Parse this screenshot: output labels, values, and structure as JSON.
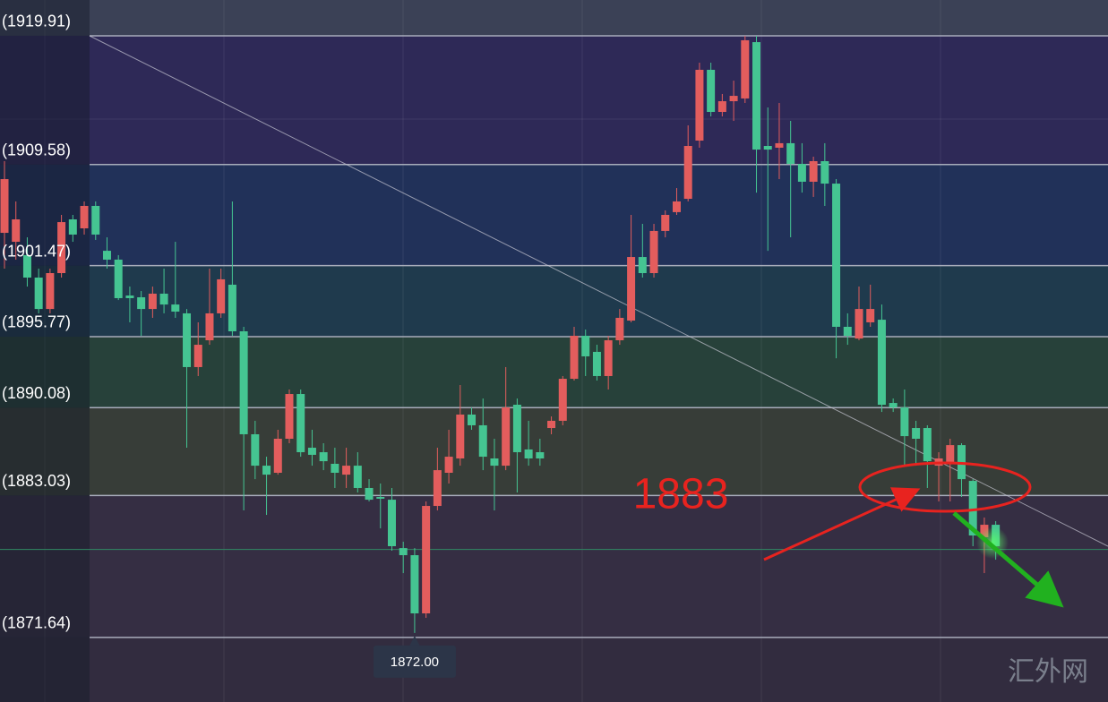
{
  "chart_data": {
    "type": "candlestick",
    "open": [
      1904.1,
      1903.38,
      1902.31,
      1900.51,
      1897.99,
      1900.87,
      1905.18,
      1904.46,
      1906.26,
      1902.66,
      1901.95,
      1899.07,
      1898.93,
      1897.99,
      1899.22,
      1898.35,
      1897.64,
      1893.33,
      1895.48,
      1897.64,
      1899.94,
      1896.2,
      1887.94,
      1885.42,
      1884.85,
      1887.58,
      1891.17,
      1886.86,
      1886.5,
      1885.57,
      1884.7,
      1885.42,
      1883.63,
      1882.91,
      1882.69,
      1878.81,
      1878.24,
      1873.57,
      1882.19,
      1884.85,
      1886.0,
      1889.52,
      1888.66,
      1886.0,
      1885.42,
      1890.31,
      1886.72,
      1886.5,
      1888.44,
      1889.02,
      1892.39,
      1895.84,
      1894.55,
      1892.61,
      1895.48,
      1897.06,
      1902.16,
      1900.87,
      1904.25,
      1905.76,
      1906.83,
      1911.5,
      1917.18,
      1913.8,
      1914.66,
      1914.88,
      1919.4,
      1911.07,
      1910.93,
      1911.29,
      1909.63,
      1908.2,
      1909.85,
      1908.05,
      1896.56,
      1895.62,
      1896.92,
      1897.13,
      1890.45,
      1890.09,
      1888.44,
      1888.44,
      1885.42,
      1885.64,
      1887.07,
      1884.2,
      1879.68,
      1880.68
    ],
    "high": [
      1909.85,
      1906.62,
      1903.74,
      1901.23,
      1901.23,
      1905.54,
      1905.54,
      1906.62,
      1906.62,
      1903.74,
      1902.31,
      1899.79,
      1899.43,
      1899.79,
      1901.23,
      1903.38,
      1897.99,
      1896.92,
      1901.23,
      1901.23,
      1906.62,
      1896.56,
      1889.02,
      1886.14,
      1888.3,
      1891.53,
      1891.53,
      1888.3,
      1887.22,
      1886.86,
      1886.86,
      1886.5,
      1884.34,
      1883.99,
      1883.63,
      1879.32,
      1878.81,
      1882.55,
      1886.86,
      1888.3,
      1891.89,
      1890.09,
      1890.81,
      1887.58,
      1893.33,
      1890.81,
      1889.02,
      1887.58,
      1889.37,
      1892.61,
      1896.56,
      1896.34,
      1895.12,
      1895.84,
      1897.99,
      1905.54,
      1904.82,
      1904.82,
      1905.9,
      1907.69,
      1912.72,
      1917.75,
      1917.75,
      1915.24,
      1916.31,
      1919.91,
      1919.91,
      1914.16,
      1914.52,
      1913.08,
      1911.29,
      1910.21,
      1911.29,
      1908.41,
      1897.64,
      1899.79,
      1899.94,
      1898.35,
      1890.81,
      1891.53,
      1889.02,
      1888.66,
      1886.5,
      1887.58,
      1887.22,
      1884.34,
      1881.26,
      1880.97
    ],
    "low": [
      1901.23,
      1901.95,
      1899.79,
      1897.64,
      1897.64,
      1900.51,
      1903.38,
      1903.96,
      1903.53,
      1901.23,
      1898.71,
      1896.92,
      1895.84,
      1897.28,
      1897.64,
      1897.28,
      1886.86,
      1892.61,
      1895.12,
      1897.28,
      1895.84,
      1881.83,
      1884.34,
      1881.47,
      1884.7,
      1887.22,
      1886.14,
      1885.42,
      1885.06,
      1883.63,
      1883.63,
      1883.27,
      1882.55,
      1880.39,
      1878.6,
      1876.8,
      1872.0,
      1873.21,
      1881.83,
      1883.99,
      1885.42,
      1888.3,
      1885.06,
      1881.83,
      1885.06,
      1883.27,
      1885.42,
      1885.42,
      1887.94,
      1888.66,
      1892.25,
      1892.61,
      1892.25,
      1891.53,
      1895.12,
      1896.92,
      1900.51,
      1900.51,
      1903.74,
      1905.54,
      1906.62,
      1910.93,
      1913.44,
      1913.44,
      1913.08,
      1914.52,
      1907.33,
      1902.66,
      1908.41,
      1903.74,
      1907.33,
      1906.98,
      1906.26,
      1894.04,
      1895.12,
      1895.48,
      1896.56,
      1889.73,
      1889.73,
      1885.42,
      1885.42,
      1883.63,
      1882.55,
      1882.55,
      1882.91,
      1878.96,
      1876.8,
      1877.88
    ],
    "close": [
      1908.41,
      1905.18,
      1900.51,
      1897.99,
      1900.87,
      1904.96,
      1903.96,
      1906.26,
      1903.96,
      1901.95,
      1898.86,
      1898.86,
      1897.99,
      1899.22,
      1898.35,
      1897.78,
      1893.33,
      1895.12,
      1897.64,
      1900.37,
      1896.2,
      1887.94,
      1885.42,
      1884.7,
      1887.58,
      1891.17,
      1886.5,
      1886.29,
      1885.78,
      1884.85,
      1885.42,
      1883.63,
      1882.69,
      1882.77,
      1878.96,
      1878.24,
      1873.57,
      1882.19,
      1885.06,
      1886.14,
      1889.52,
      1888.66,
      1886.14,
      1885.42,
      1890.09,
      1886.5,
      1886.0,
      1886.0,
      1889.02,
      1892.39,
      1895.84,
      1894.19,
      1892.61,
      1895.48,
      1897.28,
      1902.16,
      1900.87,
      1904.25,
      1905.54,
      1906.62,
      1911.07,
      1917.18,
      1913.8,
      1914.66,
      1915.09,
      1919.55,
      1910.78,
      1910.78,
      1911.29,
      1909.63,
      1908.2,
      1909.85,
      1908.05,
      1896.56,
      1895.84,
      1897.99,
      1897.99,
      1890.31,
      1890.09,
      1887.79,
      1887.58,
      1885.78,
      1886.0,
      1887.07,
      1884.34,
      1879.82,
      1880.68,
      1878.96
    ],
    "up_color": "#e35d5d",
    "down_color": "#45c592",
    "ylim": [
      1866.46,
      1922.78
    ],
    "yticks": [
      {
        "value": 1871.64,
        "label": "(1871.64)"
      },
      {
        "value": 1883.03,
        "label": "(1883.03)"
      },
      {
        "value": 1890.08,
        "label": "(1890.08)"
      },
      {
        "value": 1895.77,
        "label": "(1895.77)"
      },
      {
        "value": 1901.47,
        "label": "(1901.47)"
      },
      {
        "value": 1909.58,
        "label": "(1909.58)"
      },
      {
        "value": 1919.91,
        "label": "(1919.91)"
      }
    ],
    "band_colors": [
      "#322c3f",
      "#352e43",
      "#373d38",
      "#27413a",
      "#1f3a4d",
      "#213159",
      "#2e2957",
      "#3b4156"
    ],
    "current_price": 1878.7,
    "low_label": {
      "value": 1872.0,
      "label": "1872.00"
    },
    "annotation": "1883",
    "annotation_color": "#e8231f",
    "watermark": "汇外网"
  }
}
